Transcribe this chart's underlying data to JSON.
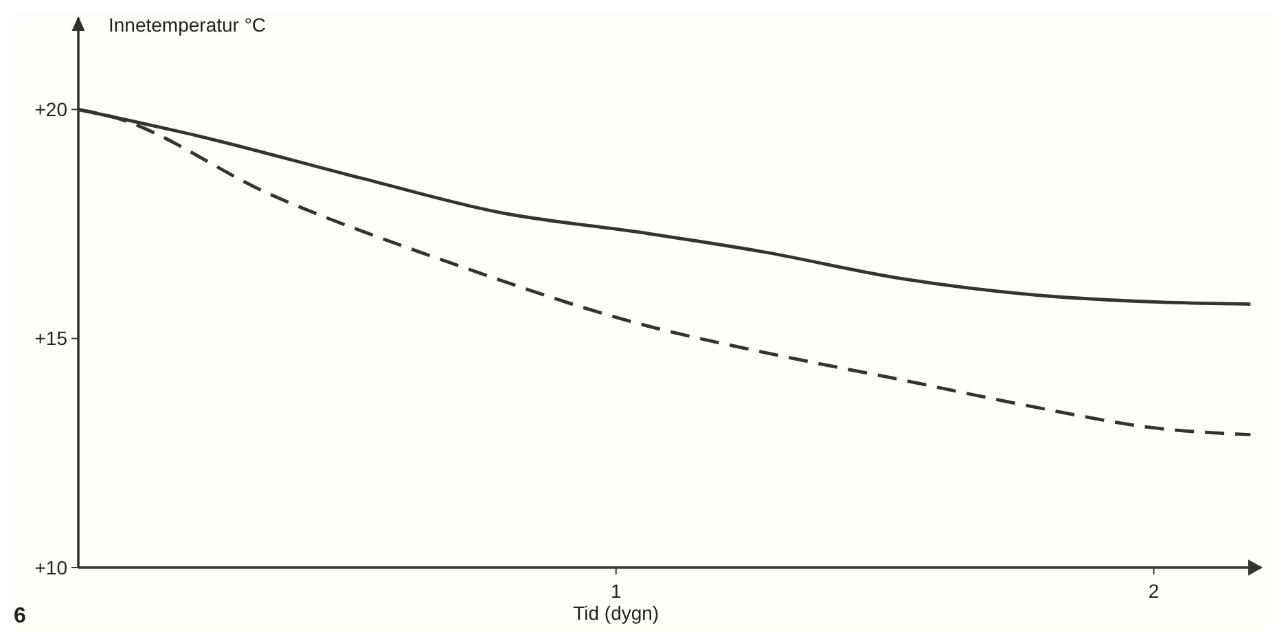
{
  "chart_data": {
    "type": "line",
    "xlabel": "Tid (dygn)",
    "ylabel": "Innetemperatur °C",
    "xlim": [
      0,
      2.2
    ],
    "ylim": [
      10,
      22
    ],
    "xticks": [
      1,
      2
    ],
    "yticks": [
      {
        "value": 10,
        "label": "+10"
      },
      {
        "value": 15,
        "label": "+15"
      },
      {
        "value": 20,
        "label": "+20"
      }
    ],
    "grid": false,
    "marker": "none",
    "series": [
      {
        "color": "#333333",
        "line_style": "solid",
        "x": [
          0,
          0.22,
          0.53,
          0.78,
          1.05,
          1.27,
          1.53,
          1.78,
          2.0,
          2.18
        ],
        "values": [
          20,
          19.43,
          18.49,
          17.76,
          17.31,
          16.9,
          16.31,
          15.95,
          15.8,
          15.75
        ]
      },
      {
        "color": "#333333",
        "line_style": "dashed",
        "x": [
          0,
          0.06,
          0.36,
          0.7,
          1.05,
          1.27,
          1.53,
          1.78,
          2.0,
          2.18
        ],
        "values": [
          20,
          19.85,
          18.13,
          16.62,
          15.3,
          14.71,
          14.1,
          13.5,
          13.05,
          12.9
        ]
      }
    ],
    "annotations": [
      "6"
    ]
  }
}
